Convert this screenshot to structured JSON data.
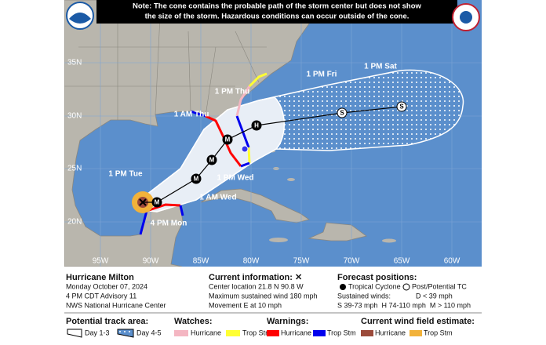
{
  "note": {
    "line1": "Note: The cone contains the probable path of the storm center but does not show",
    "line2": "the size of the storm. Hazardous conditions can occur outside of the cone."
  },
  "map": {
    "lat_labels": [
      "35N",
      "30N",
      "25N",
      "20N"
    ],
    "lon_labels": [
      "95W",
      "90W",
      "85W",
      "80W",
      "75W",
      "70W",
      "65W",
      "60W"
    ],
    "time_labels": [
      "4 PM Mon",
      "1 PM Tue",
      "1 AM Wed",
      "1 PM Wed",
      "1 AM Thu",
      "1 PM Thu",
      "1 PM Fri",
      "1 PM Sat"
    ],
    "position_letters": [
      "M",
      "M",
      "M",
      "M",
      "H",
      "S",
      "S"
    ]
  },
  "legend": {
    "storm": {
      "name": "Hurricane Milton",
      "date": "Monday October 07, 2024",
      "advisory": "4 PM CDT Advisory 11",
      "office": "NWS National Hurricane Center"
    },
    "current": {
      "title": "Current information: ✕",
      "location": "Center location 21.8 N 90.8 W",
      "wind": "Maximum sustained wind 180 mph",
      "movement": "Movement E at 10 mph"
    },
    "forecast": {
      "title": "Forecast positions:",
      "tropical": "Tropical Cyclone",
      "post": "Post/Potential TC",
      "winds": "Sustained winds:",
      "d": "D < 39 mph",
      "scale": "S 39-73 mph  H 74-110 mph  M > 110 mph"
    },
    "track_area": {
      "title": "Potential track area:",
      "day13": "Day 1-3",
      "day45": "Day 4-5"
    },
    "watches": {
      "title": "Watches:",
      "hurricane": "Hurricane",
      "trop": "Trop Stm"
    },
    "warnings": {
      "title": "Warnings:",
      "hurricane": "Hurricane",
      "trop": "Trop Stm"
    },
    "wind_field": {
      "title": "Current wind field estimate:",
      "hurricane": "Hurricane",
      "trop": "Trop Stm"
    }
  }
}
